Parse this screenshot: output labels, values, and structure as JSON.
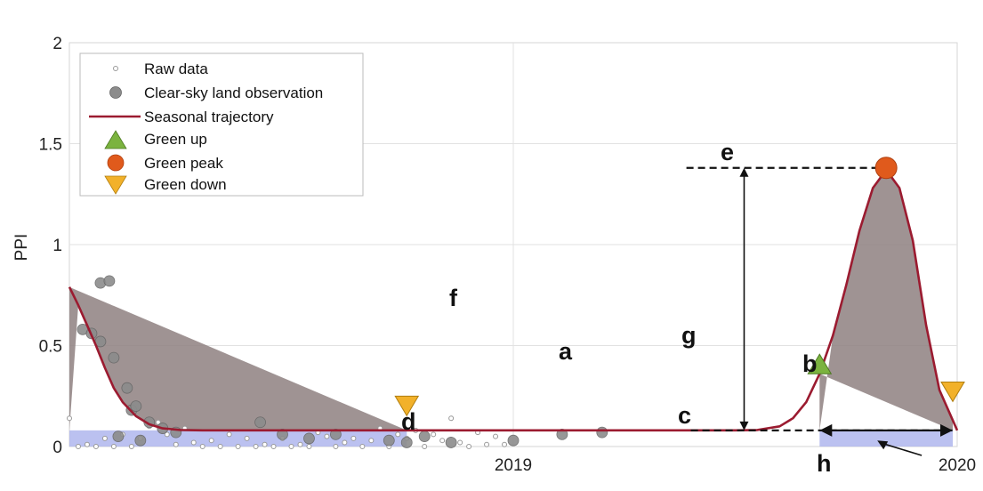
{
  "chart_data": {
    "type": "line",
    "xlabel": "",
    "ylabel": "PPI",
    "xlim": [
      2018.0,
      2020.0
    ],
    "ylim": [
      0,
      2
    ],
    "x_ticks": [
      {
        "value": 2019,
        "label": "2019"
      },
      {
        "value": 2020,
        "label": "2020"
      }
    ],
    "y_ticks": [
      {
        "value": 0,
        "label": "0"
      },
      {
        "value": 0.5,
        "label": "0.5"
      },
      {
        "value": 1,
        "label": "1"
      },
      {
        "value": 1.5,
        "label": "1.5"
      },
      {
        "value": 2,
        "label": "2"
      }
    ],
    "grid": true,
    "legend_position": "top-left",
    "legend": [
      {
        "label": "Raw data",
        "marker": "small-open-circle"
      },
      {
        "label": "Clear-sky land observation",
        "marker": "filled-gray-circle"
      },
      {
        "label": "Seasonal trajectory",
        "marker": "line"
      },
      {
        "label": "Green up",
        "marker": "triangle-up"
      },
      {
        "label": "Green peak",
        "marker": "circle"
      },
      {
        "label": "Green down",
        "marker": "triangle-down"
      }
    ],
    "colors": {
      "trajectory": "#9b1b30",
      "green_up": "#7bb33f",
      "green_peak": "#e05a1c",
      "green_down": "#f2b12a",
      "season_fill": "#8e8080",
      "base_fill": "#aab2ec",
      "clear_sky": "#8c8c8c",
      "raw": "#999999"
    },
    "series": [
      {
        "name": "Seasonal trajectory",
        "x": [
          2018.0,
          2018.02,
          2018.04,
          2018.06,
          2018.08,
          2018.1,
          2018.12,
          2018.15,
          2018.18,
          2018.21,
          2018.25,
          2018.3,
          2018.4,
          2018.5,
          2018.6,
          2018.7,
          2018.8,
          2018.9,
          2019.0,
          2019.1,
          2019.2,
          2019.3,
          2019.4,
          2019.5,
          2019.55,
          2019.6,
          2019.63,
          2019.66,
          2019.69,
          2019.72,
          2019.75,
          2019.78,
          2019.81,
          2019.84,
          2019.87,
          2019.9,
          2019.93,
          2019.96,
          2020.0
        ],
        "y": [
          0.79,
          0.7,
          0.6,
          0.5,
          0.39,
          0.29,
          0.22,
          0.15,
          0.11,
          0.09,
          0.082,
          0.08,
          0.08,
          0.08,
          0.08,
          0.08,
          0.08,
          0.08,
          0.08,
          0.08,
          0.08,
          0.08,
          0.08,
          0.08,
          0.082,
          0.1,
          0.14,
          0.22,
          0.36,
          0.55,
          0.8,
          1.07,
          1.28,
          1.37,
          1.28,
          1.02,
          0.6,
          0.28,
          0.08
        ]
      }
    ],
    "clear_sky_points": {
      "x": [
        2018.03,
        2018.05,
        2018.07,
        2018.1,
        2018.13,
        2018.14,
        2018.15,
        2018.07,
        2018.09,
        2018.11,
        2018.16,
        2018.18,
        2018.21,
        2018.24,
        2018.43,
        2018.48,
        2018.54,
        2018.72,
        2018.76,
        2018.6,
        2018.8,
        2018.86,
        2019.0,
        2019.11,
        2019.2
      ],
      "y": [
        0.58,
        0.56,
        0.52,
        0.44,
        0.29,
        0.18,
        0.2,
        0.81,
        0.82,
        0.05,
        0.03,
        0.12,
        0.09,
        0.07,
        0.12,
        0.06,
        0.04,
        0.03,
        0.02,
        0.06,
        0.05,
        0.02,
        0.03,
        0.06,
        0.07
      ]
    },
    "raw_points": {
      "x": [
        2018.0,
        2018.02,
        2018.04,
        2018.06,
        2018.08,
        2018.1,
        2018.12,
        2018.14,
        2018.16,
        2018.18,
        2018.2,
        2018.22,
        2018.24,
        2018.26,
        2018.28,
        2018.3,
        2018.32,
        2018.34,
        2018.36,
        2018.38,
        2018.4,
        2018.42,
        2018.44,
        2018.46,
        2018.48,
        2018.5,
        2018.52,
        2018.54,
        2018.56,
        2018.58,
        2018.6,
        2018.62,
        2018.64,
        2018.66,
        2018.68,
        2018.7,
        2018.72,
        2018.74,
        2018.76,
        2018.78,
        2018.8,
        2018.82,
        2018.84,
        2018.86,
        2018.88,
        2018.9,
        2018.92,
        2018.94,
        2018.96,
        2018.98
      ],
      "y": [
        0.14,
        0,
        0.01,
        0,
        0.04,
        0,
        0.06,
        0,
        0.04,
        0.1,
        0.12,
        0.06,
        0.01,
        0.09,
        0.02,
        0,
        0.03,
        0,
        0.06,
        0,
        0.04,
        0,
        0.01,
        0,
        0.04,
        0,
        0.01,
        0,
        0.07,
        0.05,
        0,
        0.02,
        0.04,
        0,
        0.03,
        0.09,
        0,
        0.06,
        0.04,
        0.08,
        0,
        0.06,
        0.03,
        0.14,
        0.02,
        0,
        0.07,
        0.01,
        0.05,
        0.01
      ]
    },
    "green_up": {
      "x": 2019.69,
      "y": 0.4
    },
    "green_peak": {
      "x": 2019.84,
      "y": 1.38
    },
    "green_down": {
      "x": 2019.99,
      "y": 0.28
    },
    "green_down_early": {
      "x": 2018.76,
      "y": 0.21
    },
    "annotations": [
      {
        "label": "a"
      },
      {
        "label": "b"
      },
      {
        "label": "c"
      },
      {
        "label": "d"
      },
      {
        "label": "e"
      },
      {
        "label": "f"
      },
      {
        "label": "g"
      },
      {
        "label": "h"
      }
    ]
  }
}
